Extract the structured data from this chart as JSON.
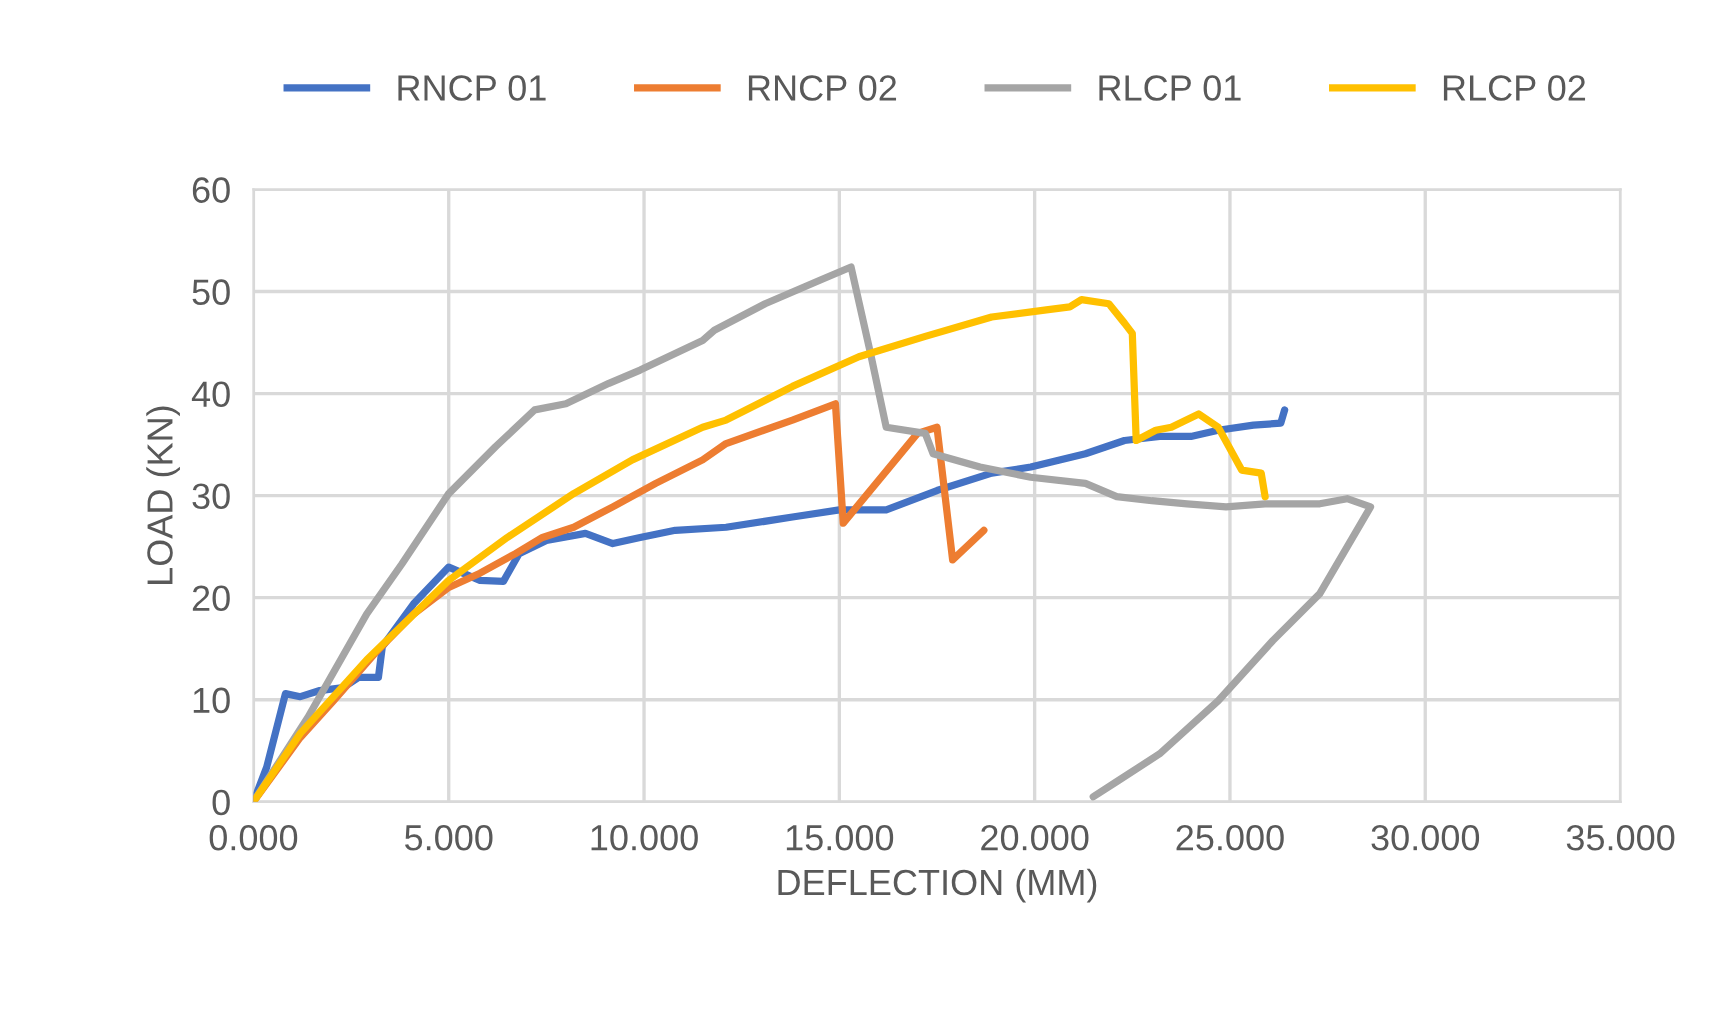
{
  "chart_data": {
    "type": "line",
    "xlabel": "DEFLECTION (MM)",
    "ylabel": "LOAD (KN)",
    "xlim": [
      0,
      35
    ],
    "ylim": [
      0,
      60
    ],
    "xticks": [
      {
        "value": 0,
        "label": "0.000"
      },
      {
        "value": 5,
        "label": "5.000"
      },
      {
        "value": 10,
        "label": "10.000"
      },
      {
        "value": 15,
        "label": "15.000"
      },
      {
        "value": 20,
        "label": "20.000"
      },
      {
        "value": 25,
        "label": "25.000"
      },
      {
        "value": 30,
        "label": "30.000"
      },
      {
        "value": 35,
        "label": "35.000"
      }
    ],
    "yticks": [
      0,
      10,
      20,
      30,
      40,
      50,
      60
    ],
    "grid": true,
    "legend": "top",
    "marker": "none",
    "line_style": "solid",
    "series": [
      {
        "name": "RNCP 01",
        "color": "#4472c4",
        "x": [
          0,
          0.34,
          0.82,
          1.2,
          1.7,
          2.3,
          2.7,
          3.2,
          3.3,
          4.1,
          5.0,
          5.8,
          6.4,
          6.8,
          7.5,
          8.5,
          9.2,
          9.9,
          10.8,
          12.1,
          13.8,
          15,
          16.2,
          17.5,
          18.9,
          19.9,
          21.3,
          22.3,
          23.2,
          24.0,
          24.7,
          25.6,
          26.3,
          26.4
        ],
        "values": [
          0,
          3.4,
          10.6,
          10.3,
          10.9,
          11.2,
          12.2,
          12.2,
          15.2,
          19.4,
          23,
          21.7,
          21.6,
          24.3,
          25.6,
          26.3,
          25.3,
          25.9,
          26.6,
          26.9,
          27.9,
          28.6,
          28.6,
          30.5,
          32.2,
          32.8,
          34.1,
          35.4,
          35.8,
          35.8,
          36.4,
          36.9,
          37.1,
          38.4
        ]
      },
      {
        "name": "RNCP 02",
        "color": "#ed7d31",
        "x": [
          0,
          1.2,
          2.05,
          3.1,
          4.1,
          5.0,
          5.8,
          6.7,
          7.4,
          8.2,
          9.2,
          10.3,
          11.5,
          12.1,
          13.8,
          14.9,
          15.1,
          17.0,
          17.5,
          17.9,
          18.7
        ],
        "values": [
          0,
          6.3,
          9.9,
          14.5,
          18.4,
          21,
          22.4,
          24.3,
          25.9,
          26.9,
          28.9,
          31.2,
          33.5,
          35.1,
          37.4,
          39.0,
          27.3,
          36.1,
          36.7,
          23.7,
          26.6
        ]
      },
      {
        "name": "RLCP 01",
        "color": "#a5a5a5",
        "x": [
          0,
          1.4,
          2.9,
          3.8,
          5.0,
          6.2,
          7.2,
          8.0,
          9.1,
          9.9,
          11.5,
          11.8,
          13.1,
          14.5,
          15.3,
          15.8,
          16.2,
          17.2,
          17.4,
          18.6,
          19.9,
          21.3,
          22.1,
          23.0,
          23.9,
          24.9,
          25.9,
          27.3,
          28.0,
          28.6,
          27.3,
          26.1,
          24.7,
          23.2,
          22.15,
          21.5
        ],
        "values": [
          0,
          8.3,
          18.4,
          23.3,
          30.2,
          34.8,
          38.4,
          39.0,
          41,
          42.3,
          45.2,
          46.2,
          48.8,
          51.1,
          52.4,
          43.9,
          36.7,
          36.1,
          34.1,
          32.8,
          31.8,
          31.2,
          29.9,
          29.5,
          29.2,
          28.9,
          29.2,
          29.2,
          29.7,
          28.9,
          20.4,
          15.8,
          9.9,
          4.7,
          2.1,
          0.5
        ]
      },
      {
        "name": "RLCP 02",
        "color": "#ffc000",
        "x": [
          0,
          1.2,
          2.9,
          5.0,
          6.5,
          8.2,
          9.7,
          11.5,
          12.1,
          13.8,
          15.5,
          17.2,
          18.9,
          20.3,
          20.9,
          21.2,
          21.9,
          22.3,
          22.5,
          22.6,
          23.1,
          23.5,
          24.2,
          24.7,
          25.3,
          25.8,
          25.9
        ],
        "values": [
          0,
          6.7,
          13.9,
          21.7,
          25.9,
          30.2,
          33.5,
          36.7,
          37.4,
          40.7,
          43.6,
          45.6,
          47.5,
          48.2,
          48.5,
          49.2,
          48.8,
          46.9,
          45.9,
          35.4,
          36.4,
          36.7,
          38.0,
          36.7,
          32.5,
          32.2,
          29.9
        ]
      }
    ]
  }
}
